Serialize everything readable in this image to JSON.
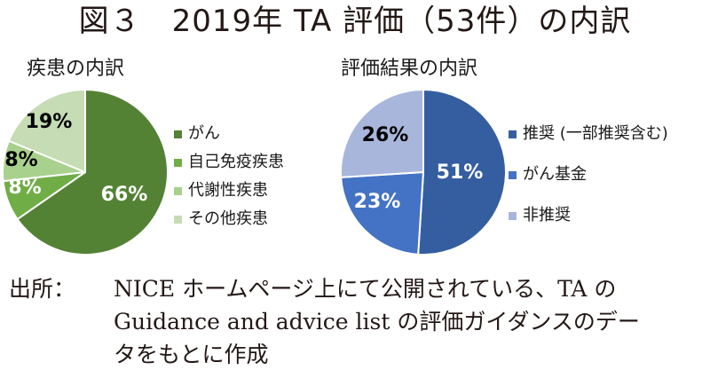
{
  "figure": {
    "title": "図３　2019年 TA 評価（53件）の内訳"
  },
  "chart_data": [
    {
      "type": "pie",
      "title": "疾患の内訳",
      "categories": [
        "がん",
        "自己免疫疾患",
        "代謝性疾患",
        "その他疾患"
      ],
      "values": [
        66,
        8,
        8,
        19
      ],
      "labels": [
        "66%",
        "8%",
        "8%",
        "19%"
      ],
      "colors": [
        "#548235",
        "#70ad47",
        "#a9d18e",
        "#c5dcb5"
      ],
      "label_colors": [
        "#ffffff",
        "#ffffff",
        "#000000",
        "#000000"
      ],
      "legend_position": "right",
      "unit": "%"
    },
    {
      "type": "pie",
      "title": "評価結果の内訳",
      "categories": [
        "推奨 (一部推奨含む)",
        "がん基金",
        "非推奨"
      ],
      "values": [
        51,
        23,
        26
      ],
      "labels": [
        "51%",
        "23%",
        "26%"
      ],
      "colors": [
        "#355ea0",
        "#4472c4",
        "#a8b6db"
      ],
      "label_colors": [
        "#ffffff",
        "#ffffff",
        "#000000"
      ],
      "legend_position": "right",
      "unit": "%"
    }
  ],
  "source": {
    "label": "出所：",
    "lines": [
      "NICE ホームページ上にて公開されている、TA の",
      "Guidance and advice list の評価ガイダンスのデー",
      "タをもとに作成"
    ]
  }
}
